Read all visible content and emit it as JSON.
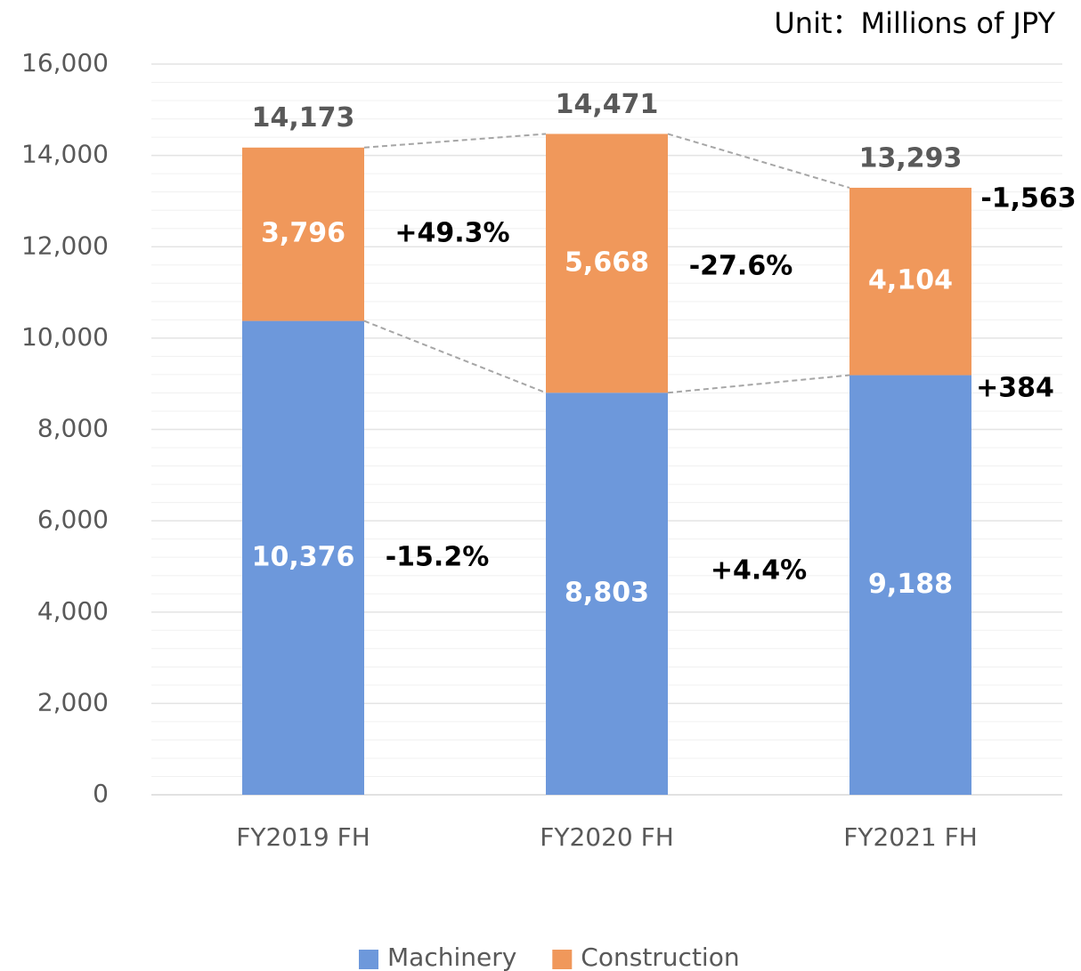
{
  "chart_data": {
    "type": "stacked_bar",
    "title": "Unit：Millions of JPY",
    "categories": [
      "FY2019 FH",
      "FY2020 FH",
      "FY2021 FH"
    ],
    "series": [
      {
        "name": "Machinery",
        "color": "#6d98db",
        "values": [
          10376,
          8803,
          9188
        ],
        "value_labels": [
          "10,376",
          "8,803",
          "9,188"
        ]
      },
      {
        "name": "Construction",
        "color": "#f0985b",
        "values": [
          3796,
          5668,
          4104
        ],
        "value_labels": [
          "3,796",
          "5,668",
          "4,104"
        ]
      }
    ],
    "totals": {
      "values": [
        14173,
        14471,
        13293
      ],
      "value_labels": [
        "14,173",
        "14,471",
        "13,293"
      ]
    },
    "annotations": [
      "+49.3%",
      "-15.2%",
      "-27.6%",
      "+4.4%",
      "-1,563",
      "+384"
    ],
    "ylim": [
      0,
      16000
    ],
    "yticks": [
      0,
      {
        "value": 2000,
        "label": "2,000"
      },
      {
        "value": 4000,
        "label": "4,000"
      },
      {
        "value": 6000,
        "label": "6,000"
      },
      {
        "value": 8000,
        "label": "8,000"
      },
      {
        "value": 10000,
        "label": "10,000"
      },
      {
        "value": 12000,
        "label": "12,000"
      },
      {
        "value": 14000,
        "label": "14,000"
      },
      {
        "value": 16000,
        "label": "16,000"
      }
    ],
    "minor_grid_step": 400,
    "grid": true,
    "legend": "bottom"
  }
}
